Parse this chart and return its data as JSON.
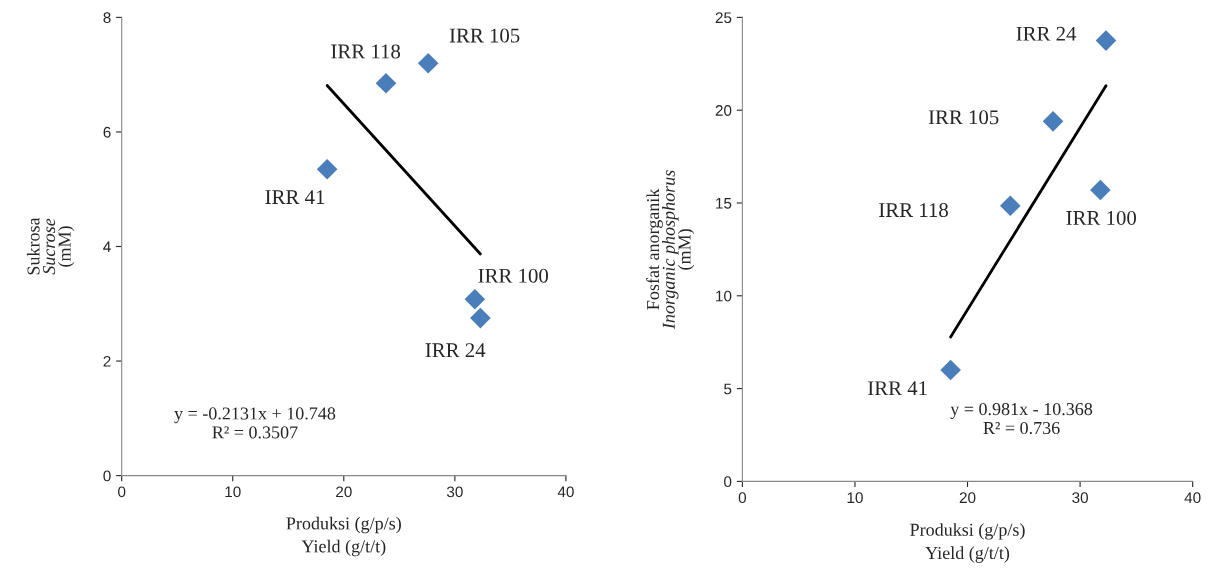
{
  "chart_data": [
    {
      "type": "scatter",
      "xlabel": "Produksi (g/p/s)\nYield (g/t/t)",
      "ylabel": "Sukrosa\nSucrose\n(mM)",
      "xlim": [
        0,
        40
      ],
      "xticks": [
        0,
        10,
        20,
        30,
        40
      ],
      "ylim": [
        0,
        8
      ],
      "yticks": [
        0,
        2,
        4,
        6,
        8
      ],
      "grid": false,
      "legend": false,
      "series": [
        {
          "color": "#4a7ebb",
          "marker": "diamond",
          "x": [
            18.5,
            23.8,
            27.6,
            31.8,
            32.3
          ],
          "values": [
            5.35,
            6.85,
            7.2,
            3.08,
            2.75
          ]
        },
        {
          "type": "line",
          "marker": "none",
          "color": "#000000",
          "x": [
            18.5,
            32.3
          ],
          "values": [
            6.81,
            3.87
          ]
        }
      ],
      "annotations": [
        {
          "text": "IRR 41",
          "x": 18.5,
          "y": 5.35
        },
        {
          "text": "IRR 118",
          "x": 23.8,
          "y": 6.85
        },
        {
          "text": "IRR 105",
          "x": 27.6,
          "y": 7.2
        },
        {
          "text": "IRR 100",
          "x": 31.8,
          "y": 3.08
        },
        {
          "text": "IRR 24",
          "x": 32.3,
          "y": 2.75
        },
        "y = -0.2131x + 10.748\nR² = 0.3507"
      ]
    },
    {
      "type": "scatter",
      "xlabel": "Produksi (g/p/s)\nYield (g/t/t)",
      "ylabel": "Fosfat anorganik\nInorganic phosphorus\n(mM)",
      "xlim": [
        0,
        40
      ],
      "xticks": [
        0,
        10,
        20,
        30,
        40
      ],
      "ylim": [
        0,
        25
      ],
      "yticks": [
        0,
        5,
        10,
        15,
        20,
        25
      ],
      "grid": false,
      "legend": false,
      "series": [
        {
          "color": "#4a7ebb",
          "marker": "diamond",
          "x": [
            18.5,
            23.8,
            27.6,
            31.8,
            32.3
          ],
          "values": [
            6.0,
            14.85,
            19.4,
            15.7,
            23.75
          ]
        },
        {
          "type": "line",
          "marker": "none",
          "color": "#000000",
          "x": [
            18.5,
            32.3
          ],
          "values": [
            7.78,
            21.32
          ]
        }
      ],
      "annotations": [
        {
          "text": "IRR 41",
          "x": 18.5,
          "y": 6.0
        },
        {
          "text": "IRR 118",
          "x": 23.8,
          "y": 14.85
        },
        {
          "text": "IRR 105",
          "x": 27.6,
          "y": 19.4
        },
        {
          "text": "IRR 100",
          "x": 31.8,
          "y": 15.7
        },
        {
          "text": "IRR 24",
          "x": 32.3,
          "y": 23.75
        },
        "y = 0.981x - 10.368\nR² = 0.736"
      ]
    }
  ]
}
